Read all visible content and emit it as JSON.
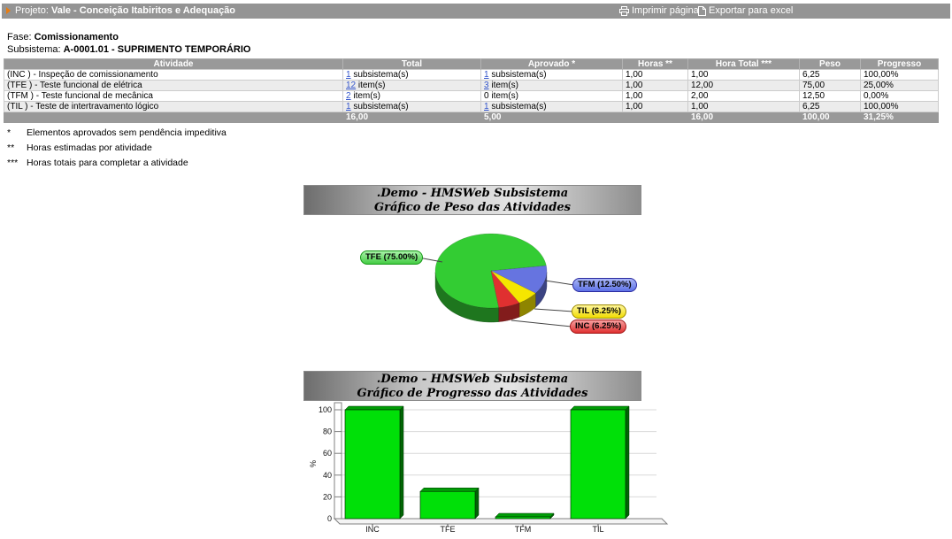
{
  "topbar": {
    "project_label": "Projeto:",
    "project_name": "Vale - Conceição Itabiritos e Adequação",
    "print_label": "Imprimir página",
    "export_label": "Exportar para excel"
  },
  "info": {
    "fase_label": "Fase:",
    "fase_value": "Comissionamento",
    "subsistema_label": "Subsistema:",
    "subsistema_value": "A-0001.01 - SUPRIMENTO TEMPORÁRIO"
  },
  "table": {
    "columns": [
      "Atividade",
      "Total",
      "Aprovado *",
      "Horas **",
      "Hora Total ***",
      "Peso",
      "Progresso"
    ],
    "rows": [
      {
        "atividade": "(INC ) - Inspeção de comissionamento",
        "total_link": "1",
        "total_rest": " subsistema(s)",
        "aprovado_link": "1",
        "aprovado_rest": " subsistema(s)",
        "aprovado_is_link": true,
        "horas": "1,00",
        "hora_total": "1,00",
        "peso": "6,25",
        "progresso": "100,00%"
      },
      {
        "atividade": "(TFE ) - Teste funcional de elétrica",
        "total_link": "12",
        "total_rest": " item(s)",
        "aprovado_link": "3",
        "aprovado_rest": " item(s)",
        "aprovado_is_link": true,
        "horas": "1,00",
        "hora_total": "12,00",
        "peso": "75,00",
        "progresso": "25,00%"
      },
      {
        "atividade": "(TFM ) - Teste funcional de mecânica",
        "total_link": "2",
        "total_rest": " item(s)",
        "aprovado_link": "0",
        "aprovado_rest": " item(s)",
        "aprovado_is_link": false,
        "horas": "1,00",
        "hora_total": "2,00",
        "peso": "12,50",
        "progresso": "0,00%"
      },
      {
        "atividade": "(TIL ) - Teste de intertravamento lógico",
        "total_link": "1",
        "total_rest": " subsistema(s)",
        "aprovado_link": "1",
        "aprovado_rest": " subsistema(s)",
        "aprovado_is_link": true,
        "horas": "1,00",
        "hora_total": "1,00",
        "peso": "6,25",
        "progresso": "100,00%"
      }
    ],
    "footer": {
      "atividade": "",
      "total": "16,00",
      "aprovado": "5,00",
      "horas": "",
      "hora_total": "16,00",
      "peso": "100,00",
      "progresso": "31,25%"
    }
  },
  "footnotes": [
    {
      "mark": "*",
      "text": "Elementos aprovados sem pendência impeditiva"
    },
    {
      "mark": "**",
      "text": "Horas estimadas por atividade"
    },
    {
      "mark": "***",
      "text": "Horas totais para completar a atividade"
    }
  ],
  "chart_data": [
    {
      "type": "pie",
      "title_line1": ".Demo - HMSWeb Subsistema",
      "title_line2": "Gráfico de Peso das Atividades",
      "slices": [
        {
          "label": "TFE",
          "value": 75.0,
          "display": "TFE (75.00%)",
          "color": "#33cc33"
        },
        {
          "label": "TFM",
          "value": 12.5,
          "display": "TFM (12.50%)",
          "color": "#6674e0"
        },
        {
          "label": "TIL",
          "value": 6.25,
          "display": "TIL (6.25%)",
          "color": "#f5e600"
        },
        {
          "label": "INC",
          "value": 6.25,
          "display": "INC (6.25%)",
          "color": "#e03030"
        }
      ]
    },
    {
      "type": "bar",
      "title_line1": ".Demo - HMSWeb Subsistema",
      "title_line2": "Gráfico de Progresso das Atividades",
      "categories": [
        "INC",
        "TFE",
        "TFM",
        "TIL"
      ],
      "values": [
        100,
        25,
        0,
        100
      ],
      "ylabel": "%",
      "yticks": [
        0,
        20,
        40,
        60,
        80,
        100
      ],
      "ylim": [
        0,
        100
      ],
      "bar_color": "#00e008",
      "grid": true,
      "legend": "none"
    }
  ]
}
